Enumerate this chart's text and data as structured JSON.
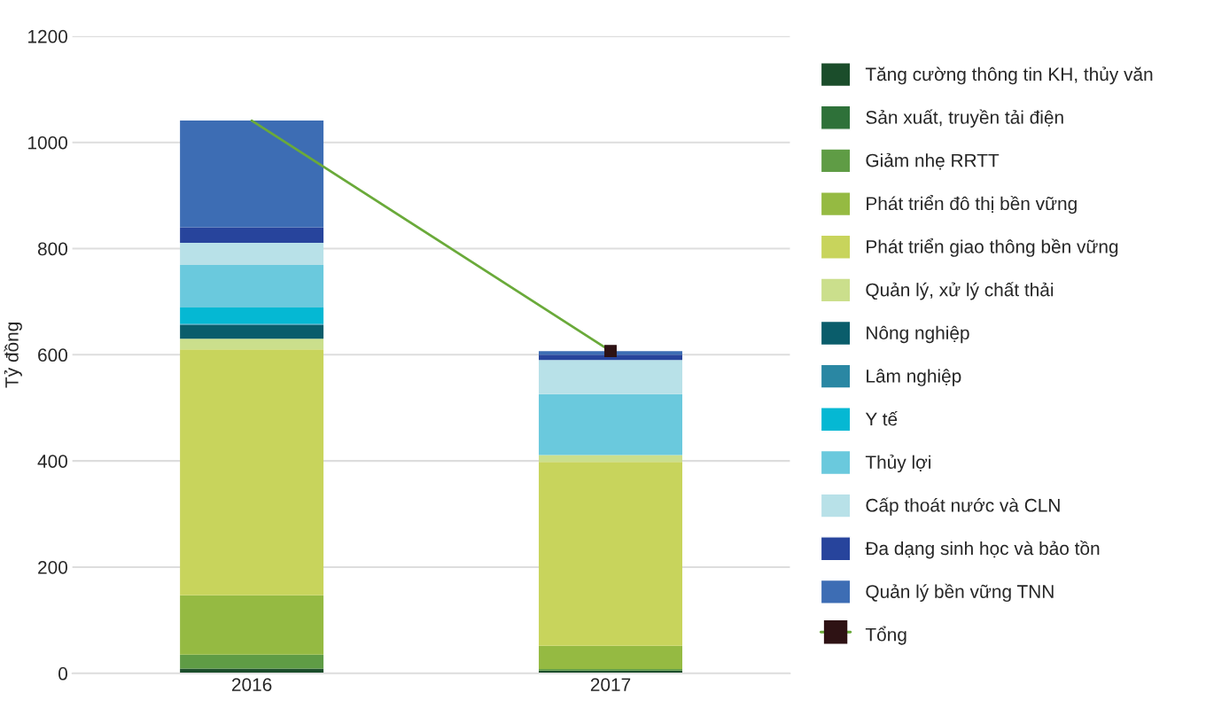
{
  "chart_data": {
    "type": "bar",
    "stacked": true,
    "ylabel": "Tỷ đồng",
    "categories": [
      "2016",
      "2017"
    ],
    "ylim": [
      0,
      1200
    ],
    "yticks": [
      0,
      200,
      400,
      600,
      800,
      1000,
      1200
    ],
    "grid": "y",
    "legend": "right",
    "series": [
      {
        "name": "Tăng cường thông tin KH, thủy văn",
        "color": "#1b4d2b",
        "values": [
          9,
          5
        ]
      },
      {
        "name": "Sản xuất, truyền tải điện",
        "color": "#2e7139",
        "values": [
          0,
          0
        ]
      },
      {
        "name": "Giảm nhẹ RRTT",
        "color": "#5f9c45",
        "values": [
          26,
          3
        ]
      },
      {
        "name": "Phát triển đô thị bền vững",
        "color": "#95ba42",
        "values": [
          112,
          44
        ]
      },
      {
        "name": "Phát triển giao thông bền vững",
        "color": "#c8d45c",
        "values": [
          463,
          346
        ]
      },
      {
        "name": "Quản lý, xử lý chất thải",
        "color": "#cbdf8c",
        "values": [
          20,
          13
        ]
      },
      {
        "name": "Nông nghiệp",
        "color": "#0a5d6b",
        "values": [
          26,
          0
        ]
      },
      {
        "name": "Lâm nghiệp",
        "color": "#2a87a3",
        "values": [
          2,
          0
        ]
      },
      {
        "name": "Y tế",
        "color": "#05b8d3",
        "values": [
          31,
          0
        ]
      },
      {
        "name": "Thủy lợi",
        "color": "#6ac9dd",
        "values": [
          80,
          115
        ]
      },
      {
        "name": "Cấp thoát nước và CLN",
        "color": "#b8e1e8",
        "values": [
          42,
          64
        ]
      },
      {
        "name": "Đa dạng sinh học và bảo tồn",
        "color": "#27449c",
        "values": [
          29,
          10
        ]
      },
      {
        "name": "Quản lý bền vững TNN",
        "color": "#3d6db4",
        "values": [
          201,
          7
        ]
      },
      {
        "name": "Tổng",
        "type": "line",
        "color": "#6aaa3a",
        "marker": "square",
        "colors": [
          null,
          "#2e1214"
        ],
        "values": [
          1041,
          607
        ]
      }
    ]
  }
}
